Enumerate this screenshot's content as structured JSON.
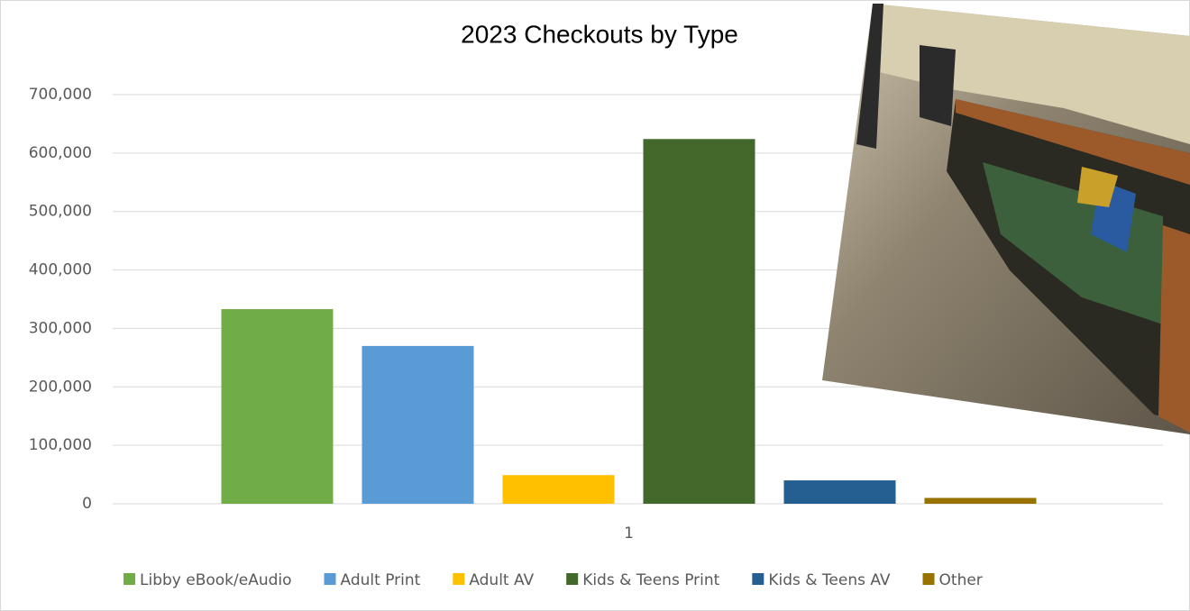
{
  "chart_data": {
    "type": "bar",
    "title": "2023 Checkouts by Type",
    "categories": [
      "1"
    ],
    "series": [
      {
        "name": "Libby eBook/eAudio",
        "color": "#70ad47",
        "values": [
          333000
        ]
      },
      {
        "name": "Adult Print",
        "color": "#5b9bd5",
        "values": [
          270000
        ]
      },
      {
        "name": "Adult AV",
        "color": "#ffc000",
        "values": [
          49000
        ]
      },
      {
        "name": "Kids & Teens Print",
        "color": "#43682b",
        "values": [
          624000
        ]
      },
      {
        "name": "Kids & Teens AV",
        "color": "#255e91",
        "values": [
          40000
        ]
      },
      {
        "name": "Other",
        "color": "#997300",
        "values": [
          10000
        ]
      }
    ],
    "ylim": [
      0,
      700000
    ],
    "yticks": [
      0,
      {
        "value": 100000,
        "label": "100,000"
      },
      {
        "value": 200000,
        "label": "200,000"
      },
      {
        "value": 300000,
        "label": "300,000"
      },
      {
        "value": 400000,
        "label": "400,000"
      },
      {
        "value": 500000,
        "label": "500,000"
      },
      {
        "value": 600000,
        "label": "600,000"
      },
      {
        "value": 700000,
        "label": "700,000"
      }
    ],
    "grid": true
  }
}
